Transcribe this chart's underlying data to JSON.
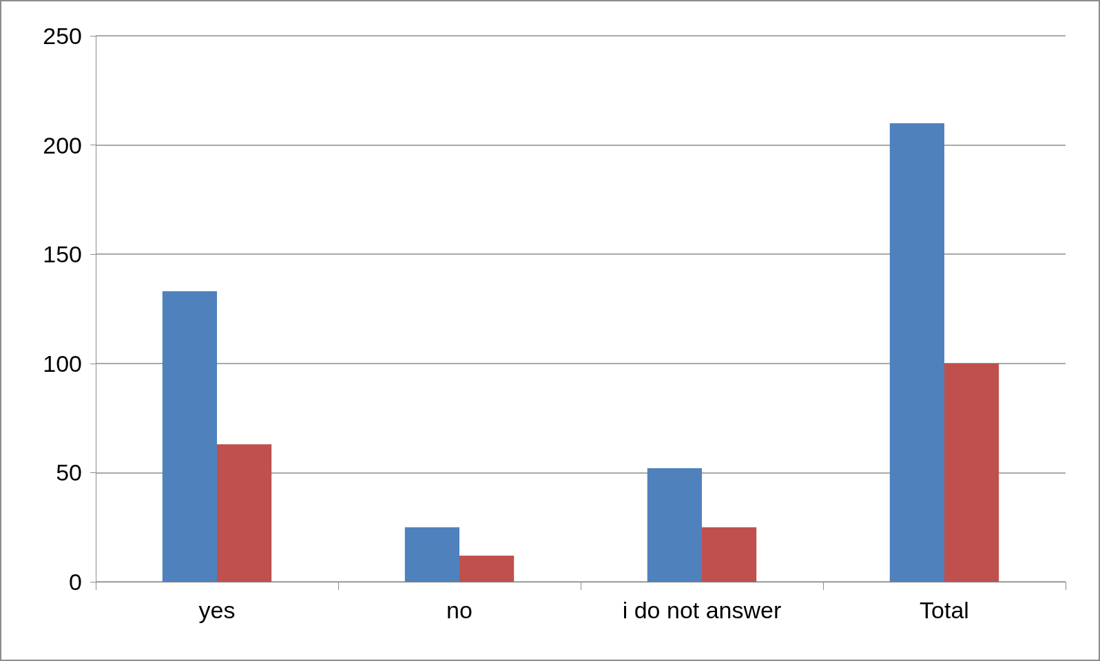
{
  "chart_data": {
    "type": "bar",
    "categories": [
      "yes",
      "no",
      "i do not answer",
      "Total"
    ],
    "series": [
      {
        "color": "#4f81bd",
        "values": [
          133,
          25,
          52,
          210
        ]
      },
      {
        "color": "#c0504d",
        "values": [
          63,
          12,
          25,
          100
        ]
      }
    ],
    "ylim": [
      0,
      250
    ],
    "yticks": [
      0,
      50,
      100,
      150,
      200,
      250
    ],
    "grid": "y"
  }
}
